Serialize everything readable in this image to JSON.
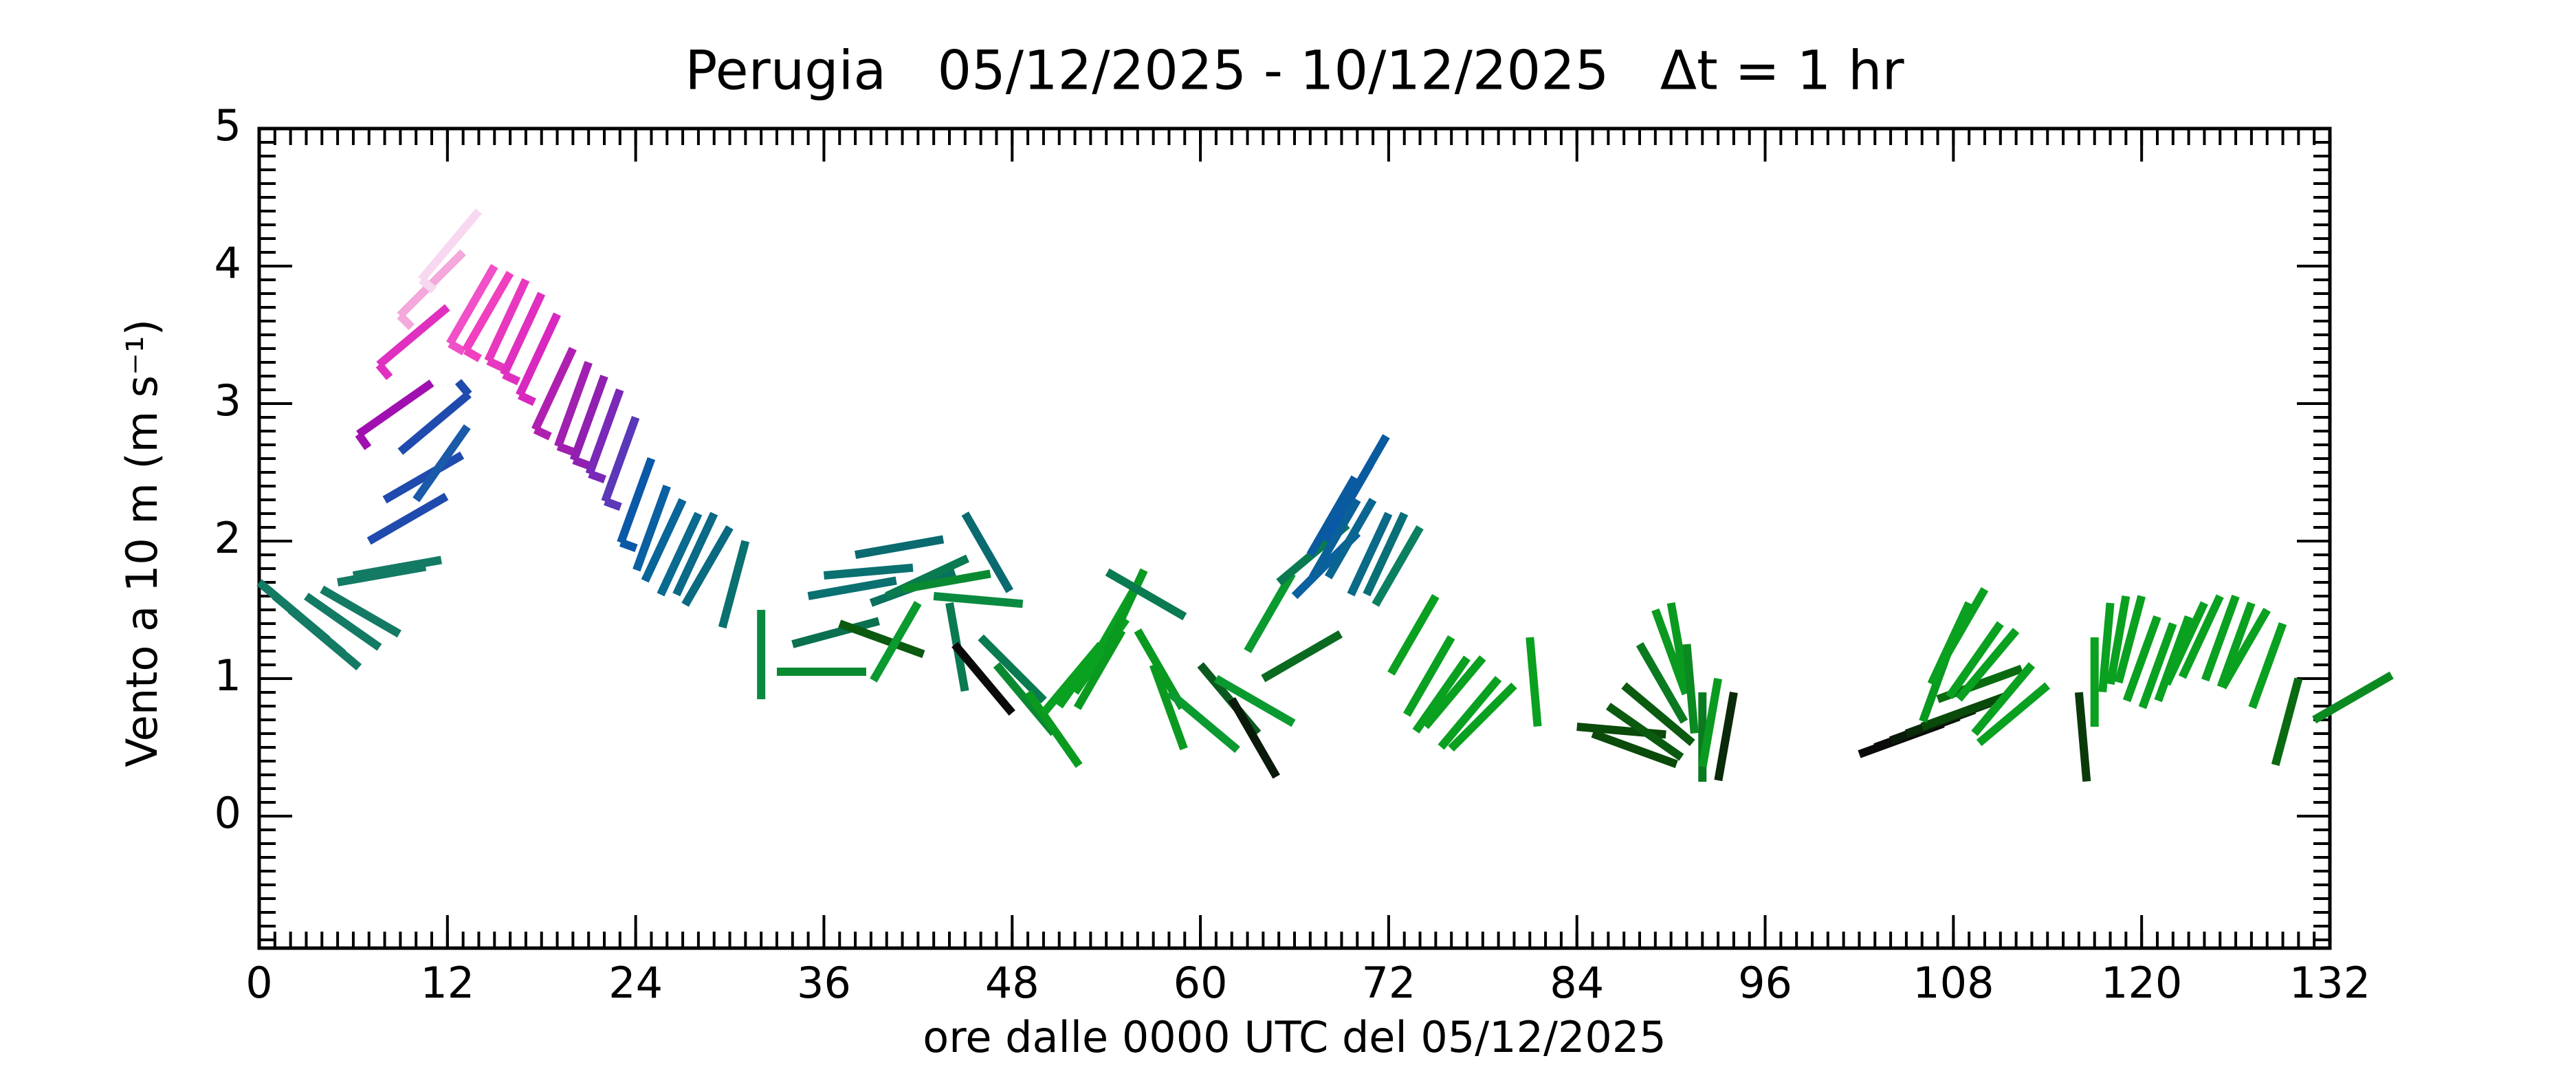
{
  "chart_data": {
    "type": "windbarb",
    "title": "Perugia   05/12/2025 - 10/12/2025   Δt = 1 hr",
    "xlabel": "ore dalle 0000 UTC del 05/12/2025",
    "ylabel": "Vento a 10 m (m s⁻¹)",
    "xlim": [
      0,
      132
    ],
    "xticks": [
      0,
      12,
      24,
      36,
      48,
      60,
      72,
      84,
      96,
      108,
      120,
      132
    ],
    "ylim": [
      -0.96,
      5
    ],
    "yticks": [
      0,
      1,
      2,
      3,
      4,
      5
    ],
    "x": [
      0,
      1,
      2,
      3,
      4,
      5,
      6,
      7,
      8,
      9,
      10,
      11,
      12,
      13,
      14,
      15,
      16,
      17,
      18,
      19,
      20,
      21,
      22,
      23,
      24,
      25,
      26,
      27,
      28,
      29,
      30,
      31,
      32,
      33,
      34,
      35,
      36,
      37,
      38,
      39,
      40,
      41,
      42,
      43,
      44,
      45,
      46,
      47,
      48,
      49,
      50,
      51,
      52,
      53,
      54,
      55,
      56,
      57,
      58,
      59,
      60,
      61,
      62,
      63,
      64,
      65,
      66,
      67,
      68,
      69,
      70,
      71,
      72,
      73,
      74,
      75,
      76,
      77,
      78,
      79,
      80,
      81,
      84,
      85,
      86,
      87,
      88,
      89,
      90,
      91,
      92,
      93,
      94,
      102,
      103,
      104,
      105,
      106,
      107,
      108,
      109,
      110,
      111,
      112,
      113,
      114,
      116,
      117,
      118,
      119,
      120,
      121,
      122,
      123,
      124,
      125,
      126,
      127,
      128,
      129,
      130,
      131
    ],
    "values": [
      1.7,
      1.6,
      1.5,
      1.6,
      1.65,
      1.7,
      1.75,
      2.0,
      2.3,
      2.65,
      2.3,
      3.15,
      3.7,
      4.1,
      4.4,
      4.0,
      3.95,
      3.9,
      3.8,
      3.65,
      3.4,
      3.3,
      3.2,
      3.1,
      2.9,
      2.6,
      2.4,
      2.3,
      2.2,
      2.2,
      2.1,
      2.0,
      1.5,
      1.05,
      1.25,
      1.6,
      1.75,
      1.4,
      1.9,
      1.55,
      1.6,
      1.65,
      1.55,
      1.6,
      1.55,
      2.2,
      1.3,
      1.1,
      0.75,
      0.9,
      0.75,
      0.8,
      0.9,
      1.1,
      1.2,
      1.35,
      1.35,
      1.1,
      0.9,
      1.45,
      1.1,
      1.0,
      0.85,
      1.2,
      1.0,
      1.7,
      1.6,
      1.9,
      2.0,
      2.2,
      2.3,
      2.3,
      2.2,
      2.2,
      2.1,
      1.6,
      1.3,
      1.15,
      1.15,
      1.0,
      0.95,
      1.3,
      0.65,
      0.6,
      0.8,
      0.95,
      1.25,
      1.5,
      1.55,
      1.25,
      0.9,
      1.0,
      0.9,
      0.45,
      0.5,
      0.55,
      0.6,
      0.65,
      0.85,
      1.3,
      1.55,
      1.65,
      1.4,
      1.35,
      1.1,
      0.95,
      0.9,
      1.3,
      1.55,
      1.6,
      1.6,
      1.45,
      1.4,
      1.45,
      1.55,
      1.6,
      1.6,
      1.55,
      1.5,
      1.4,
      1.0,
      0.7
    ],
    "directions": [
      130,
      130,
      130,
      125,
      120,
      80,
      80,
      60,
      60,
      50,
      35,
      235,
      230,
      225,
      220,
      210,
      210,
      205,
      205,
      205,
      205,
      200,
      200,
      200,
      200,
      200,
      200,
      205,
      205,
      205,
      210,
      195,
      180,
      90,
      75,
      80,
      85,
      110,
      80,
      70,
      65,
      80,
      210,
      95,
      170,
      150,
      135,
      140,
      320,
      145,
      40,
      35,
      35,
      30,
      25,
      210,
      150,
      160,
      130,
      300,
      140,
      120,
      150,
      30,
      60,
      50,
      45,
      30,
      30,
      30,
      210,
      210,
      205,
      205,
      210,
      210,
      210,
      215,
      220,
      220,
      225,
      175,
      95,
      110,
      125,
      130,
      150,
      160,
      170,
      175,
      180,
      190,
      190,
      70,
      70,
      70,
      70,
      70,
      70,
      200,
      205,
      210,
      215,
      220,
      220,
      230,
      175,
      180,
      185,
      190,
      195,
      200,
      200,
      200,
      205,
      205,
      200,
      200,
      210,
      200,
      195,
      60
    ],
    "colors": [
      "#137a64",
      "#137a64",
      "#137a64",
      "#137a64",
      "#137a64",
      "#137a64",
      "#137a64",
      "#1f4aae",
      "#1f4aae",
      "#1f4aae",
      "#1a5aa8",
      "#a010b0",
      "#e030c0",
      "#f4a8dc",
      "#f8d8f0",
      "#f050c8",
      "#f040c0",
      "#e838c0",
      "#e030c0",
      "#d828c0",
      "#b020b0",
      "#a020b0",
      "#9020b0",
      "#7a28b8",
      "#5a38b8",
      "#0a58a8",
      "#0a60a0",
      "#0a6598",
      "#0a6a90",
      "#0a6a88",
      "#0a6a80",
      "#0a7070",
      "#0a8a40",
      "#0a8a30",
      "#0a7050",
      "#0a7070",
      "#0a7070",
      "#0a5a10",
      "#0a6a70",
      "#0a7060",
      "#0a7a50",
      "#0a8a30",
      "#0a9a30",
      "#0a8a40",
      "#0a7a50",
      "#0a6a70",
      "#0a7a50",
      "#0a8a30",
      "#0a0a0a",
      "#0a9a20",
      "#0aa020",
      "#0aa020",
      "#0aa020",
      "#0aa020",
      "#0a9a20",
      "#0a9a20",
      "#0a9a20",
      "#0a9a20",
      "#0a9a30",
      "#0a7a50",
      "#0a5a20",
      "#0a9a30",
      "#0a1a0a",
      "#0a9a30",
      "#0a6a20",
      "#0a7a50",
      "#0a60a0",
      "#0a5aa0",
      "#0a58a8",
      "#0a5aa0",
      "#0a6098",
      "#0a6590",
      "#0a6a88",
      "#0a7078",
      "#0a8060",
      "#0aa020",
      "#0aa020",
      "#0aa020",
      "#0aa020",
      "#0aa020",
      "#0aa020",
      "#0aa020",
      "#0a4a0a",
      "#0a4a0a",
      "#0a5a10",
      "#0a5a10",
      "#0a7a20",
      "#0a9a20",
      "#0a9a20",
      "#0a8a20",
      "#0a7a20",
      "#0a9a20",
      "#0a2a0a",
      "#0a0a0a",
      "#0a0a0a",
      "#0a1a0a",
      "#0a2a0a",
      "#0a4a0a",
      "#0a6a10",
      "#0a9a20",
      "#0aa020",
      "#0aa020",
      "#0aa020",
      "#0aa020",
      "#0aa020",
      "#0aa020",
      "#0a3a0a",
      "#0aa020",
      "#0aa020",
      "#0aa020",
      "#0aa020",
      "#0aa020",
      "#0aa020",
      "#0aa020",
      "#0aa020",
      "#0aa020",
      "#0aa020",
      "#0aa020",
      "#0aa020",
      "#0aa020",
      "#0a6a10",
      "#0a8a20"
    ]
  }
}
